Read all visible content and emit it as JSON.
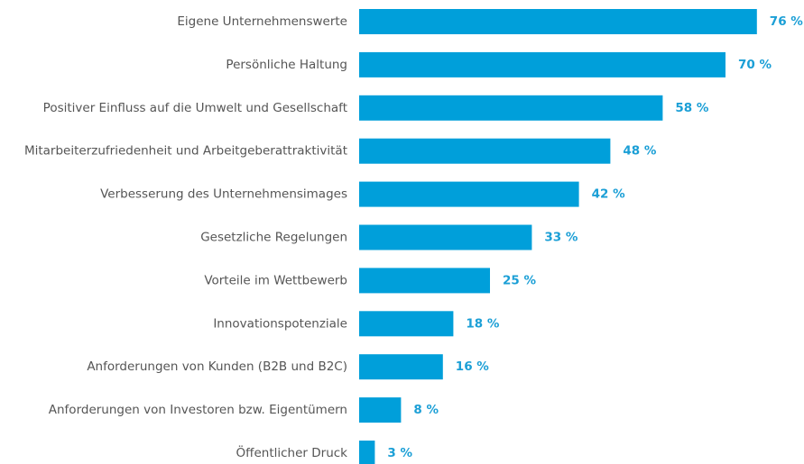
{
  "chart_data": {
    "type": "bar",
    "orientation": "horizontal",
    "categories": [
      "Eigene Unternehmenswerte",
      "Persönliche Haltung",
      "Positiver Einfluss auf die Umwelt und Gesellschaft",
      "Mitarbeiterzufriedenheit und Arbeitgeberattraktivität",
      "Verbesserung des Unternehmensimages",
      "Gesetzliche Regelungen",
      "Vorteile im Wettbewerb",
      "Innovationspotenziale",
      "Anforderungen von Kunden (B2B und B2C)",
      "Anforderungen von Investoren bzw. Eigentümern",
      "Öffentlicher Druck"
    ],
    "values": [
      76,
      70,
      58,
      48,
      42,
      33,
      25,
      18,
      16,
      8,
      3
    ],
    "value_labels": [
      "76 %",
      "70 %",
      "58 %",
      "48 %",
      "42 %",
      "33 %",
      "25 %",
      "18 %",
      "16 %",
      "8 %",
      "3 %"
    ],
    "color": "#009fda"
  }
}
